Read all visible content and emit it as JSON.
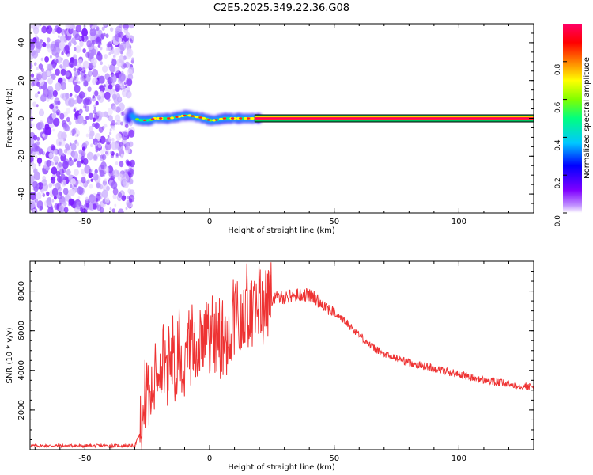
{
  "figure": {
    "title": "C2E5.2025.349.22.36.G08"
  },
  "chart_data": [
    {
      "type": "heatmap",
      "name": "spectrogram",
      "xlabel": "Height of straight line (km)",
      "ylabel": "Frequency (Hz)",
      "xlim": [
        -72,
        130
      ],
      "ylim": [
        -50,
        50
      ],
      "xticks": [
        -50,
        0,
        50,
        100
      ],
      "yticks": [
        -40,
        -20,
        0,
        20,
        40
      ],
      "noise_region_x": [
        -72,
        -32
      ],
      "signal_track": {
        "x": [
          -32,
          -30,
          -28,
          -26,
          -24,
          -22,
          -20,
          -18,
          -16,
          -14,
          -12,
          -10,
          -8,
          -6,
          -4,
          -2,
          0,
          2,
          4,
          6,
          8,
          10,
          12,
          14,
          16,
          18,
          20,
          130
        ],
        "freq": [
          3,
          0,
          -1,
          -1,
          -1,
          0,
          0,
          0,
          0,
          0.5,
          1,
          1.5,
          1.5,
          1,
          0.5,
          0,
          -1,
          -1,
          -0.5,
          0,
          0,
          0,
          0,
          0,
          0,
          0,
          0,
          0
        ]
      },
      "colorbar": {
        "label": "Normalized spectral amplitude",
        "range": [
          0,
          1
        ],
        "ticks": [
          "0.0",
          "0.2",
          "0.4",
          "0.6",
          "0.8"
        ],
        "tick_values": [
          0,
          0.2,
          0.4,
          0.6,
          0.8
        ],
        "colormap": [
          "#8000ff",
          "#0000ff",
          "#00c8ff",
          "#00ff80",
          "#80ff00",
          "#ffff00",
          "#ff8000",
          "#ff0000",
          "#ff0066"
        ]
      }
    },
    {
      "type": "line",
      "name": "snr",
      "xlabel": "Height of straight line (km)",
      "ylabel": "SNR (10 * v/v)",
      "xlim": [
        -72,
        130
      ],
      "ylim": [
        0,
        9500
      ],
      "xticks": [
        -50,
        0,
        50,
        100
      ],
      "yticks": [
        2000,
        4000,
        6000,
        8000
      ],
      "color": "#ee3333",
      "series_profile": {
        "x": [
          -72,
          -30,
          -28,
          -26,
          -25,
          -22,
          -20,
          -15,
          -10,
          -5,
          0,
          5,
          10,
          15,
          20,
          25,
          30,
          35,
          40,
          45,
          50,
          55,
          60,
          65,
          70,
          75,
          80,
          90,
          100,
          110,
          120,
          130
        ],
        "y": [
          200,
          200,
          800,
          2500,
          3500,
          4200,
          4400,
          4800,
          5000,
          5200,
          5600,
          6000,
          6500,
          7000,
          7400,
          7600,
          7700,
          7800,
          7800,
          7400,
          6900,
          6400,
          5800,
          5200,
          4800,
          4600,
          4400,
          4100,
          3800,
          3500,
          3300,
          3150
        ]
      }
    }
  ]
}
